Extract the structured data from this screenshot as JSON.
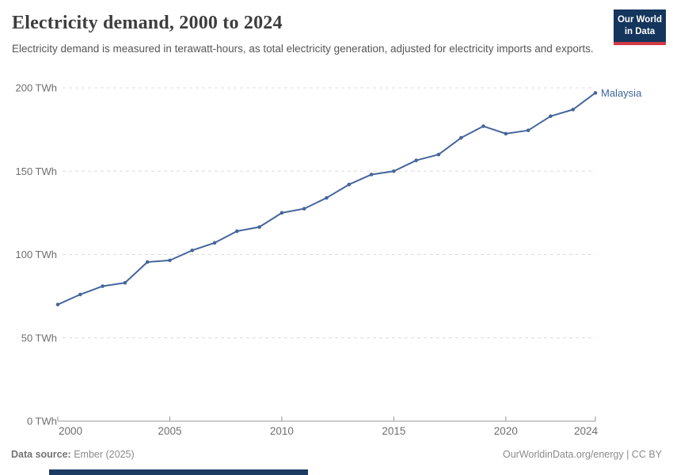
{
  "header": {
    "title": "Electricity demand, 2000 to 2024",
    "subtitle": "Electricity demand is measured in terawatt-hours, as total electricity generation, adjusted for electricity imports and exports.",
    "logo": {
      "line1": "Our World",
      "line2": "in Data"
    }
  },
  "chart_data": {
    "type": "line",
    "title": "Electricity demand, 2000 to 2024",
    "xlabel": "",
    "ylabel": "",
    "x": [
      2000,
      2001,
      2002,
      2003,
      2004,
      2005,
      2006,
      2007,
      2008,
      2009,
      2010,
      2011,
      2012,
      2013,
      2014,
      2015,
      2016,
      2017,
      2018,
      2019,
      2020,
      2021,
      2022,
      2023,
      2024
    ],
    "series": [
      {
        "name": "Malaysia",
        "color": "#44669c",
        "values": [
          70,
          76,
          81,
          83,
          95.5,
          96.5,
          102.5,
          107,
          114,
          116.5,
          125,
          127.5,
          134,
          142,
          148,
          150,
          156.5,
          160,
          170,
          177,
          172.5,
          174.5,
          183,
          187,
          197
        ]
      }
    ],
    "unit": "TWh",
    "xlim": [
      2000,
      2024
    ],
    "ylim": [
      0,
      200
    ],
    "xticks": [
      2000,
      2005,
      2010,
      2015,
      2020,
      2024
    ],
    "yticks": [
      {
        "value": 0,
        "label": "0 TWh"
      },
      {
        "value": 50,
        "label": "50 TWh"
      },
      {
        "value": 100,
        "label": "100 TWh"
      },
      {
        "value": 150,
        "label": "150 TWh"
      },
      {
        "value": 200,
        "label": "200 TWh"
      }
    ],
    "grid": "horizontal-dashed",
    "legend_position": "end-of-line-label"
  },
  "footer": {
    "source_label": "Data source:",
    "source_value": "Ember (2025)",
    "credit": "OurWorldinData.org/energy | CC BY"
  },
  "colors": {
    "series_line": "#44669c",
    "series_label": "#3d649f",
    "gridline": "#dcdcdc",
    "axis": "#9a9a9a",
    "tick_label": "#6e6e6e",
    "logo_bg": "#14355c",
    "logo_accent": "#d23a47",
    "timeline_bar": "#1d3c63"
  }
}
